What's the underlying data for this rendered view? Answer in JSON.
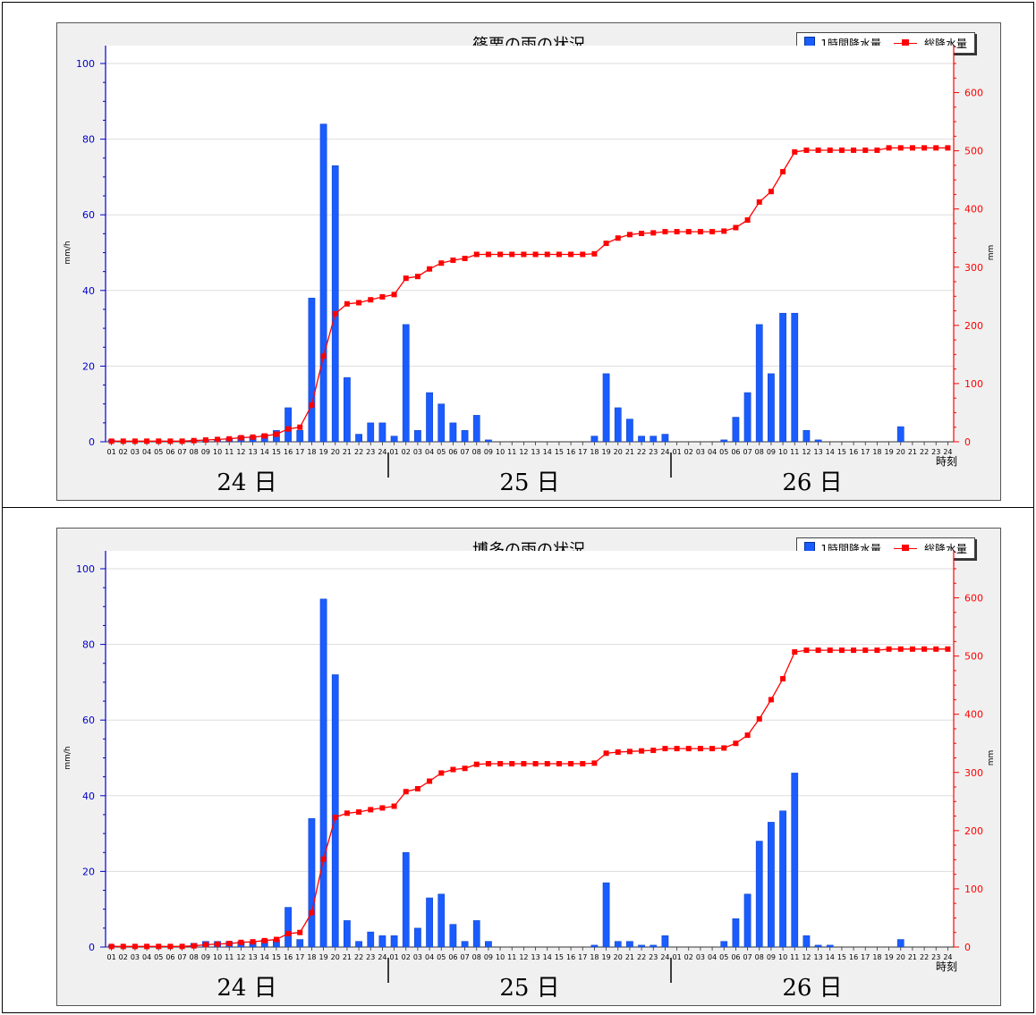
{
  "hours": [
    "01",
    "02",
    "03",
    "04",
    "05",
    "06",
    "07",
    "08",
    "09",
    "10",
    "11",
    "12",
    "13",
    "14",
    "15",
    "16",
    "17",
    "18",
    "19",
    "20",
    "21",
    "22",
    "23",
    "24"
  ],
  "time_axis_label": "時刻",
  "days": [
    "24 日",
    "25 日",
    "26 日"
  ],
  "colors": {
    "bar": "#1a5cff",
    "line": "#ff0000",
    "left_axis": "#0000cc",
    "right_axis": "#ff0000"
  },
  "chart_data": [
    {
      "type": "bar",
      "title": "篠栗の雨の状況",
      "ylabel": "mm/h",
      "y2label": "mm",
      "ylim": [
        0,
        100
      ],
      "y2lim": [
        0,
        650
      ],
      "yticks": [
        0,
        20,
        40,
        60,
        80,
        100
      ],
      "y2ticks": [
        0,
        100,
        200,
        300,
        400,
        500,
        600
      ],
      "legend": [
        "1時間降水量",
        "総降水量"
      ],
      "series": [
        {
          "name": "1時間降水量",
          "axis": "left",
          "values": [
            0.5,
            0,
            0,
            0,
            0,
            0,
            0,
            0.5,
            0.5,
            0.5,
            1,
            1.5,
            1.5,
            2,
            3,
            9,
            3,
            38,
            84,
            73,
            17,
            2,
            5,
            5,
            1.5,
            31,
            3,
            13,
            10,
            5,
            3,
            7,
            0.5,
            0,
            0,
            0,
            0,
            0,
            0,
            0,
            0,
            1.5,
            18,
            9,
            6,
            1.5,
            1.5,
            2,
            0,
            0,
            0,
            0,
            0.5,
            6.5,
            13,
            31,
            18,
            34,
            34,
            3,
            0.5,
            0,
            0,
            0,
            0,
            0,
            0,
            4,
            0,
            0,
            0,
            0
          ]
        },
        {
          "name": "総降水量",
          "axis": "right",
          "values": [
            1,
            1,
            1,
            1,
            1,
            1,
            1,
            2,
            3,
            4,
            5,
            7,
            8,
            10,
            13,
            22,
            25,
            63,
            147,
            220,
            237,
            239,
            244,
            249,
            253,
            281,
            284,
            297,
            307,
            312,
            315,
            322,
            322,
            322,
            322,
            322,
            322,
            322,
            322,
            322,
            322,
            323,
            341,
            350,
            356,
            358,
            359,
            361,
            361,
            361,
            361,
            361,
            362,
            368,
            381,
            412,
            430,
            464,
            498,
            501,
            501,
            501,
            501,
            501,
            501,
            501,
            505,
            505,
            505,
            505,
            505,
            505
          ]
        }
      ]
    },
    {
      "type": "bar",
      "title": "博多の雨の状況",
      "ylabel": "mm/h",
      "y2label": "mm",
      "ylim": [
        0,
        100
      ],
      "y2lim": [
        0,
        650
      ],
      "yticks": [
        0,
        20,
        40,
        60,
        80,
        100
      ],
      "y2ticks": [
        0,
        100,
        200,
        300,
        400,
        500,
        600
      ],
      "legend": [
        "1時間降水量",
        "総降水量"
      ],
      "series": [
        {
          "name": "1時間降水量",
          "axis": "left",
          "values": [
            0.5,
            0,
            0,
            0,
            0,
            0,
            0,
            1,
            1.5,
            1.5,
            1.5,
            1.5,
            1.5,
            2,
            2,
            10.5,
            2,
            34,
            92,
            72,
            7,
            1.5,
            4,
            3,
            3,
            25,
            5,
            13,
            14,
            6,
            1.5,
            7,
            1.5,
            0,
            0,
            0,
            0,
            0,
            0,
            0,
            0,
            0.5,
            17,
            1.5,
            1.5,
            0.5,
            0.5,
            3,
            0,
            0,
            0,
            0,
            1.5,
            7.5,
            14,
            28,
            33,
            36,
            46,
            3,
            0.5,
            0.5,
            0,
            0,
            0,
            0,
            0,
            2,
            0,
            0,
            0,
            0
          ]
        },
        {
          "name": "総降水量",
          "axis": "right",
          "values": [
            1,
            1,
            1,
            1,
            1,
            1,
            1,
            2,
            4,
            5,
            6,
            8,
            9,
            11,
            13,
            23,
            25,
            59,
            151,
            223,
            230,
            232,
            236,
            239,
            242,
            267,
            272,
            285,
            299,
            305,
            307,
            314,
            315,
            315,
            315,
            315,
            315,
            315,
            315,
            315,
            315,
            316,
            333,
            335,
            336,
            337,
            338,
            341,
            341,
            341,
            341,
            341,
            342,
            350,
            364,
            392,
            425,
            461,
            507,
            510,
            510,
            510,
            510,
            510,
            510,
            510,
            512,
            512,
            512,
            512,
            512,
            512
          ]
        }
      ]
    }
  ]
}
